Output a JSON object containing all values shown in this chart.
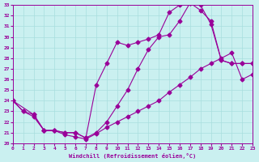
{
  "xlabel": "Windchill (Refroidissement éolien,°C)",
  "background_color": "#caf0f0",
  "grid_color": "#a8dede",
  "line_color": "#990099",
  "xlim": [
    0,
    23
  ],
  "ylim": [
    20,
    33
  ],
  "xticks": [
    0,
    1,
    2,
    3,
    4,
    5,
    6,
    7,
    8,
    9,
    10,
    11,
    12,
    13,
    14,
    15,
    16,
    17,
    18,
    19,
    20,
    21,
    22,
    23
  ],
  "yticks": [
    20,
    21,
    22,
    23,
    24,
    25,
    26,
    27,
    28,
    29,
    30,
    31,
    32,
    33
  ],
  "line1_x": [
    0,
    1,
    2,
    3,
    4,
    5,
    6,
    7,
    8,
    9,
    10,
    11,
    12,
    13,
    14,
    15,
    16,
    17,
    18,
    19,
    20,
    21,
    22,
    23
  ],
  "line1_y": [
    24.0,
    23.0,
    22.5,
    21.2,
    21.2,
    20.8,
    20.6,
    20.4,
    20.9,
    21.5,
    22.0,
    22.5,
    23.0,
    23.5,
    24.0,
    24.8,
    25.5,
    26.2,
    27.0,
    27.5,
    28.0,
    28.5,
    26.0,
    26.5
  ],
  "line2_x": [
    0,
    2,
    3,
    4,
    5,
    6,
    7,
    8,
    9,
    10,
    11,
    12,
    13,
    14,
    15,
    16,
    17,
    18,
    19,
    20,
    21,
    22,
    23
  ],
  "line2_y": [
    24.0,
    22.7,
    21.2,
    21.2,
    21.0,
    21.0,
    20.5,
    25.5,
    27.5,
    29.5,
    29.2,
    29.5,
    29.8,
    30.2,
    32.3,
    33.0,
    33.2,
    32.5,
    31.5,
    27.8,
    27.5,
    27.5,
    27.5
  ],
  "line3_x": [
    0,
    1,
    2,
    3,
    4,
    5,
    6,
    7,
    8,
    9,
    10,
    11,
    12,
    13,
    14,
    15,
    16,
    17,
    18,
    19,
    20,
    21,
    22,
    23
  ],
  "line3_y": [
    24.0,
    23.0,
    22.7,
    21.2,
    21.2,
    21.0,
    21.0,
    20.5,
    21.0,
    22.0,
    23.5,
    25.0,
    27.0,
    28.8,
    30.0,
    30.2,
    31.5,
    33.2,
    33.0,
    31.2,
    27.8,
    27.5,
    27.5,
    27.5
  ],
  "marker": "D",
  "markersize": 2.5,
  "linewidth": 0.8
}
